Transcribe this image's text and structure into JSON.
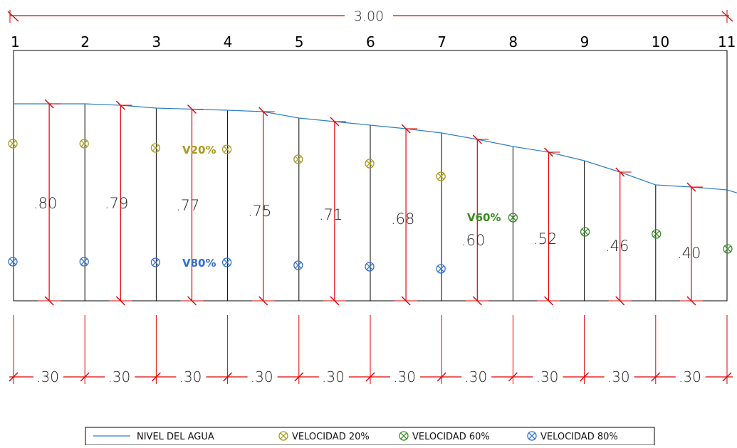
{
  "total_width_label": "3.00",
  "stations": [
    "1",
    "2",
    "3",
    "4",
    "5",
    "6",
    "7",
    "8",
    "9",
    "10",
    "11"
  ],
  "depth_labels": [
    ".80",
    ".79",
    ".77",
    ".75",
    ".71",
    ".68",
    ".60",
    ".52",
    ".46",
    ".40"
  ],
  "depths": [
    0.8,
    0.79,
    0.77,
    0.75,
    0.71,
    0.68,
    0.6,
    0.52,
    0.46,
    0.4
  ],
  "segment_width_label": ".30",
  "point_labels": {
    "v20": "V20%",
    "v60": "V60%",
    "v80": "V80%"
  },
  "colors": {
    "water": "#2f7fc1",
    "v20": "#a89a1a",
    "v60": "#3a8a22",
    "v80": "#2f6fd0",
    "dimension": "#e00000"
  },
  "legend": {
    "water_level": "NIVEL DEL AGUA",
    "v20": "VELOCIDAD 20%",
    "v60": "VELOCIDAD 60%",
    "v80": "VELOCIDAD 80%"
  }
}
